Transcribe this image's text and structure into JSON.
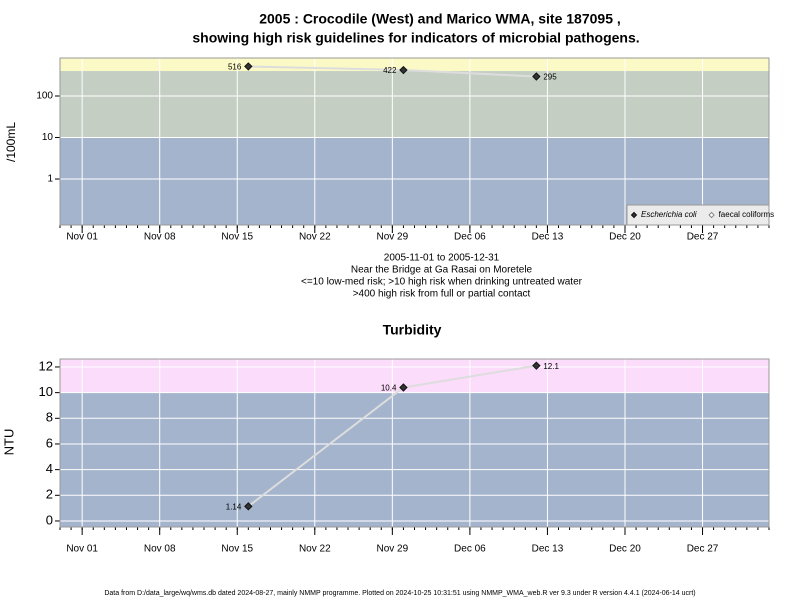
{
  "chart_data": [
    {
      "type": "line",
      "log": true,
      "title": "2005 : Crocodile (West) and Marico WMA, site 187095 ,",
      "subtitle": "showing high risk guidelines for indicators of microbial pathogens.",
      "ylabel": "/100mL",
      "x": [
        "2005-11-16",
        "2005-11-30",
        "2005-12-12"
      ],
      "series": [
        {
          "name": "Escherichia coli",
          "style": "italic",
          "marker": "filled",
          "color": "#333333",
          "values": [
            516,
            422,
            295
          ]
        },
        {
          "name": "faecal coliforms",
          "style": "normal",
          "marker": "open",
          "color": "#888888",
          "values": [
            null,
            null,
            null
          ]
        }
      ],
      "xlim": [
        "2005-10-30",
        "2006-01-02"
      ],
      "xticks": [
        {
          "value": "2005-11-01",
          "label": "Nov 01"
        },
        {
          "value": "2005-11-08",
          "label": "Nov 08"
        },
        {
          "value": "2005-11-15",
          "label": "Nov 15"
        },
        {
          "value": "2005-11-22",
          "label": "Nov 22"
        },
        {
          "value": "2005-11-29",
          "label": "Nov 29"
        },
        {
          "value": "2005-12-06",
          "label": "Dec 06"
        },
        {
          "value": "2005-12-13",
          "label": "Dec 13"
        },
        {
          "value": "2005-12-20",
          "label": "Dec 20"
        },
        {
          "value": "2005-12-27",
          "label": "Dec 27"
        }
      ],
      "ylim": [
        0.078,
        824
      ],
      "yticks": [
        1,
        10,
        100
      ],
      "bands": [
        {
          "from": 0.078,
          "to": 10,
          "color": "#a3b4cc"
        },
        {
          "from": 10,
          "to": 400,
          "color": "#c4cec3"
        },
        {
          "from": 400,
          "to": 824,
          "color": "#fbf9c6"
        }
      ],
      "grid": true,
      "legend": "bottom-right",
      "notes": [
        "2005-11-01 to 2005-12-31",
        "Near the Bridge at Ga Rasai on Moretele",
        "<=10 low-med risk; >10 high risk when drinking untreated water",
        ">400 high risk from full or partial contact"
      ]
    },
    {
      "type": "line",
      "log": false,
      "title": "Turbidity",
      "ylabel": "NTU",
      "x": [
        "2005-11-16",
        "2005-11-30",
        "2005-12-12"
      ],
      "series": [
        {
          "name": "Turbidity",
          "marker": "filled",
          "color": "#333333",
          "values": [
            1.14,
            10.4,
            12.1
          ]
        }
      ],
      "xlim": [
        "2005-10-30",
        "2006-01-02"
      ],
      "xticks": [
        {
          "value": "2005-11-01",
          "label": "Nov 01"
        },
        {
          "value": "2005-11-08",
          "label": "Nov 08"
        },
        {
          "value": "2005-11-15",
          "label": "Nov 15"
        },
        {
          "value": "2005-11-22",
          "label": "Nov 22"
        },
        {
          "value": "2005-11-29",
          "label": "Nov 29"
        },
        {
          "value": "2005-12-06",
          "label": "Dec 06"
        },
        {
          "value": "2005-12-13",
          "label": "Dec 13"
        },
        {
          "value": "2005-12-20",
          "label": "Dec 20"
        },
        {
          "value": "2005-12-27",
          "label": "Dec 27"
        }
      ],
      "ylim": [
        -0.47,
        12.62
      ],
      "yticks": [
        0,
        2,
        4,
        6,
        8,
        10,
        12
      ],
      "bands": [
        {
          "from": -0.47,
          "to": 10,
          "color": "#a3b4cc"
        },
        {
          "from": 10,
          "to": 12.62,
          "color": "#fbdcfb"
        }
      ],
      "grid": true
    }
  ],
  "footer": "Data from D:/data_large/wq/wms.db dated 2024-08-27, mainly NMMP programme. Plotted on 2024-10-25 10:31:51 using NMMP_WMA_web.R ver 9.3 under R version 4.4.1 (2024-06-14 ucrt)"
}
